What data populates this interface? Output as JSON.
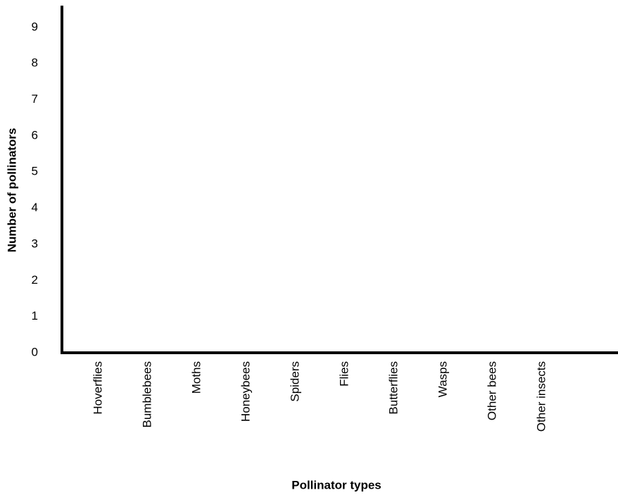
{
  "chart_data": {
    "type": "bar",
    "xlabel": "Pollinator types",
    "ylabel": "Number of pollinators",
    "categories": [
      "Hoverflies",
      "Bumblebees",
      "Moths",
      "Honeybees",
      "Spiders",
      "Flies",
      "Butterflies",
      "Wasps",
      "Other bees",
      "Other insects"
    ],
    "ylim": [
      0,
      9.6
    ],
    "yticks": [
      0,
      1,
      2,
      3,
      4,
      5,
      6,
      7,
      8,
      9
    ],
    "grid": false
  }
}
